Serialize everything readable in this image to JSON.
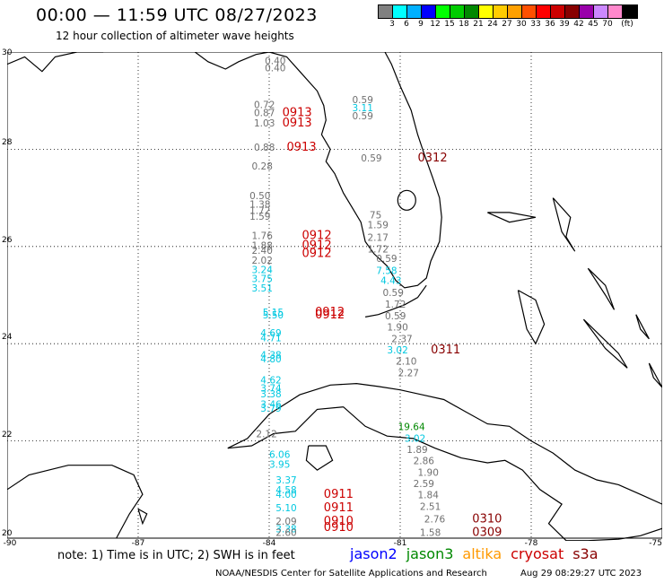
{
  "header": {
    "title": "00:00 — 11:59 UTC 08/27/2023",
    "subtitle": "12 hour collection of altimeter wave heights"
  },
  "colorbar": {
    "colors": [
      "#808080",
      "#00ffff",
      "#00b0ff",
      "#0000ff",
      "#00ff00",
      "#00cc00",
      "#008800",
      "#ffff00",
      "#ffcc00",
      "#ffa000",
      "#ff5000",
      "#ff0000",
      "#cc0000",
      "#880000",
      "#9900aa",
      "#cc88ff",
      "#ff88cc",
      "#000000"
    ],
    "labels": [
      "3",
      "6",
      "9",
      "12",
      "15",
      "18",
      "21",
      "24",
      "27",
      "30",
      "33",
      "36",
      "39",
      "42",
      "45",
      "70",
      "(ft)"
    ]
  },
  "axes": {
    "lon_labels": [
      "-90",
      "-87",
      "-84",
      "-81",
      "-78",
      "-75"
    ],
    "lat_labels": [
      "30",
      "28",
      "26",
      "24",
      "22",
      "20"
    ]
  },
  "mission_colors": {
    "jason2": "#0000ff",
    "jason3": "#008800",
    "altika": "#ff9900",
    "cryosat": "#cc0000",
    "s3a": "#880000"
  },
  "observations": [
    {
      "lon": -84.1,
      "lat": 29.6,
      "text": "0.40",
      "mission": "default"
    },
    {
      "lon": -84.1,
      "lat": 29.75,
      "text": "0.40",
      "mission": "default"
    },
    {
      "lon": -82.1,
      "lat": 28.95,
      "text": "0.59",
      "mission": "default"
    },
    {
      "lon": -82.1,
      "lat": 28.78,
      "text": "3.11",
      "mission": "cyan"
    },
    {
      "lon": -82.1,
      "lat": 28.62,
      "text": "0.59",
      "mission": "default"
    },
    {
      "lon": -84.35,
      "lat": 28.85,
      "text": "0.72",
      "mission": "default"
    },
    {
      "lon": -84.35,
      "lat": 28.68,
      "text": "0.87",
      "mission": "default"
    },
    {
      "lon": -84.35,
      "lat": 28.47,
      "text": "1.03",
      "mission": "default"
    },
    {
      "lon": -83.7,
      "lat": 28.68,
      "text": "0913",
      "mission": "cryosat"
    },
    {
      "lon": -83.7,
      "lat": 28.47,
      "text": "0913",
      "mission": "cryosat"
    },
    {
      "lon": -84.35,
      "lat": 27.97,
      "text": "0.88",
      "mission": "default"
    },
    {
      "lon": -83.6,
      "lat": 27.97,
      "text": "0913",
      "mission": "cryosat"
    },
    {
      "lon": -84.4,
      "lat": 27.58,
      "text": "0.28",
      "mission": "default"
    },
    {
      "lon": -81.9,
      "lat": 27.75,
      "text": "0.59",
      "mission": "default"
    },
    {
      "lon": -80.6,
      "lat": 27.75,
      "text": "0312",
      "mission": "s3a"
    },
    {
      "lon": -84.45,
      "lat": 26.97,
      "text": "0.50",
      "mission": "default"
    },
    {
      "lon": -84.45,
      "lat": 26.8,
      "text": "1.38",
      "mission": "default"
    },
    {
      "lon": -84.45,
      "lat": 26.67,
      "text": "1.72",
      "mission": "default"
    },
    {
      "lon": -84.45,
      "lat": 26.55,
      "text": "1.59",
      "mission": "default"
    },
    {
      "lon": -81.7,
      "lat": 26.58,
      "text": "75",
      "mission": "default"
    },
    {
      "lon": -81.75,
      "lat": 26.37,
      "text": "1.59",
      "mission": "default"
    },
    {
      "lon": -81.75,
      "lat": 26.12,
      "text": "2.17",
      "mission": "default"
    },
    {
      "lon": -81.75,
      "lat": 25.88,
      "text": "1.72",
      "mission": "default"
    },
    {
      "lon": -81.55,
      "lat": 25.68,
      "text": "0.59",
      "mission": "default"
    },
    {
      "lon": -81.55,
      "lat": 25.43,
      "text": "7.58",
      "mission": "cyan"
    },
    {
      "lon": -81.45,
      "lat": 25.23,
      "text": "4.43",
      "mission": "cyan"
    },
    {
      "lon": -81.4,
      "lat": 24.98,
      "text": "0.59",
      "mission": "default"
    },
    {
      "lon": -81.35,
      "lat": 24.74,
      "text": "1.72",
      "mission": "default"
    },
    {
      "lon": -81.35,
      "lat": 24.5,
      "text": "0.59",
      "mission": "default"
    },
    {
      "lon": -81.3,
      "lat": 24.27,
      "text": "1.90",
      "mission": "default"
    },
    {
      "lon": -81.2,
      "lat": 24.03,
      "text": "2.37",
      "mission": "default"
    },
    {
      "lon": -81.3,
      "lat": 23.8,
      "text": "3.02",
      "mission": "cyan"
    },
    {
      "lon": -80.3,
      "lat": 23.8,
      "text": "0311",
      "mission": "s3a"
    },
    {
      "lon": -81.1,
      "lat": 23.57,
      "text": "2.10",
      "mission": "default"
    },
    {
      "lon": -81.05,
      "lat": 23.33,
      "text": "2.27",
      "mission": "default"
    },
    {
      "lon": -84.4,
      "lat": 26.15,
      "text": "1.76",
      "mission": "default"
    },
    {
      "lon": -83.25,
      "lat": 26.15,
      "text": "0912",
      "mission": "cryosat"
    },
    {
      "lon": -84.4,
      "lat": 25.95,
      "text": "1.88",
      "mission": "default"
    },
    {
      "lon": -83.25,
      "lat": 25.95,
      "text": "0912",
      "mission": "cryosat"
    },
    {
      "lon": -84.4,
      "lat": 25.85,
      "text": "2.40",
      "mission": "default"
    },
    {
      "lon": -83.25,
      "lat": 25.78,
      "text": "0912",
      "mission": "cryosat"
    },
    {
      "lon": -84.4,
      "lat": 25.65,
      "text": "2.02",
      "mission": "default"
    },
    {
      "lon": -84.4,
      "lat": 25.45,
      "text": "3.24",
      "mission": "cyan"
    },
    {
      "lon": -84.4,
      "lat": 25.27,
      "text": "3.75",
      "mission": "cyan"
    },
    {
      "lon": -84.4,
      "lat": 25.07,
      "text": "3.51",
      "mission": "cyan"
    },
    {
      "lon": -84.15,
      "lat": 24.58,
      "text": "5.15",
      "mission": "cyan"
    },
    {
      "lon": -84.15,
      "lat": 24.52,
      "text": "5.50",
      "mission": "cyan"
    },
    {
      "lon": -82.95,
      "lat": 24.58,
      "text": "0912",
      "mission": "cryosat"
    },
    {
      "lon": -82.95,
      "lat": 24.52,
      "text": "0912",
      "mission": "cryosat"
    },
    {
      "lon": -84.2,
      "lat": 24.15,
      "text": "4.69",
      "mission": "cyan"
    },
    {
      "lon": -84.2,
      "lat": 24.05,
      "text": "4.71",
      "mission": "cyan"
    },
    {
      "lon": -84.2,
      "lat": 23.7,
      "text": "4.38",
      "mission": "cyan"
    },
    {
      "lon": -84.2,
      "lat": 23.62,
      "text": "4.80",
      "mission": "cyan"
    },
    {
      "lon": -84.2,
      "lat": 23.18,
      "text": "4.62",
      "mission": "cyan"
    },
    {
      "lon": -84.2,
      "lat": 23.02,
      "text": "3.74",
      "mission": "cyan"
    },
    {
      "lon": -84.2,
      "lat": 22.9,
      "text": "3.38",
      "mission": "cyan"
    },
    {
      "lon": -84.2,
      "lat": 22.68,
      "text": "3.46",
      "mission": "cyan"
    },
    {
      "lon": -84.2,
      "lat": 22.6,
      "text": "3.79",
      "mission": "cyan"
    },
    {
      "lon": -84.3,
      "lat": 22.08,
      "text": "2.12",
      "mission": "default"
    },
    {
      "lon": -81.05,
      "lat": 22.22,
      "text": "19.64",
      "mission": "jason3"
    },
    {
      "lon": -80.9,
      "lat": 21.98,
      "text": "3.02",
      "mission": "cyan"
    },
    {
      "lon": -80.85,
      "lat": 21.75,
      "text": "1.89",
      "mission": "default"
    },
    {
      "lon": -80.7,
      "lat": 21.52,
      "text": "2.86",
      "mission": "default"
    },
    {
      "lon": -80.6,
      "lat": 21.28,
      "text": "1.90",
      "mission": "default"
    },
    {
      "lon": -80.7,
      "lat": 21.05,
      "text": "2.59",
      "mission": "default"
    },
    {
      "lon": -80.6,
      "lat": 20.82,
      "text": "1.84",
      "mission": "default"
    },
    {
      "lon": -80.55,
      "lat": 20.58,
      "text": "2.51",
      "mission": "default"
    },
    {
      "lon": -80.45,
      "lat": 20.32,
      "text": "2.76",
      "mission": "default"
    },
    {
      "lon": -79.35,
      "lat": 20.32,
      "text": "0310",
      "mission": "s3a"
    },
    {
      "lon": -80.55,
      "lat": 20.05,
      "text": "1.58",
      "mission": "default"
    },
    {
      "lon": -79.35,
      "lat": 20.05,
      "text": "0309",
      "mission": "s3a"
    },
    {
      "lon": -84.0,
      "lat": 21.65,
      "text": "6.06",
      "mission": "cyan"
    },
    {
      "lon": -84.0,
      "lat": 21.45,
      "text": "3.95",
      "mission": "cyan"
    },
    {
      "lon": -83.85,
      "lat": 21.13,
      "text": "3.37",
      "mission": "cyan"
    },
    {
      "lon": -83.85,
      "lat": 20.92,
      "text": "4.58",
      "mission": "cyan"
    },
    {
      "lon": -83.85,
      "lat": 20.83,
      "text": "4.00",
      "mission": "cyan"
    },
    {
      "lon": -82.75,
      "lat": 20.83,
      "text": "0911",
      "mission": "cryosat"
    },
    {
      "lon": -83.85,
      "lat": 20.55,
      "text": "5.10",
      "mission": "cyan"
    },
    {
      "lon": -82.75,
      "lat": 20.55,
      "text": "0911",
      "mission": "cryosat"
    },
    {
      "lon": -83.85,
      "lat": 20.28,
      "text": "2.09",
      "mission": "default"
    },
    {
      "lon": -82.75,
      "lat": 20.28,
      "text": "0910",
      "mission": "cryosat"
    },
    {
      "lon": -83.85,
      "lat": 20.12,
      "text": "3.38",
      "mission": "cyan"
    },
    {
      "lon": -83.85,
      "lat": 20.05,
      "text": "2.60",
      "mission": "default"
    },
    {
      "lon": -82.75,
      "lat": 20.15,
      "text": "0910",
      "mission": "cryosat"
    }
  ],
  "footer": {
    "note": "note: 1) Time is in UTC; 2) SWH is in feet",
    "missions": [
      "jason2",
      "jason3",
      "altika",
      "cryosat",
      "s3a"
    ],
    "credit": "NOAA/NESDIS Center for Satellite Applications and Research",
    "timestamp": "Aug 29 08:29:27 UTC 2023"
  }
}
